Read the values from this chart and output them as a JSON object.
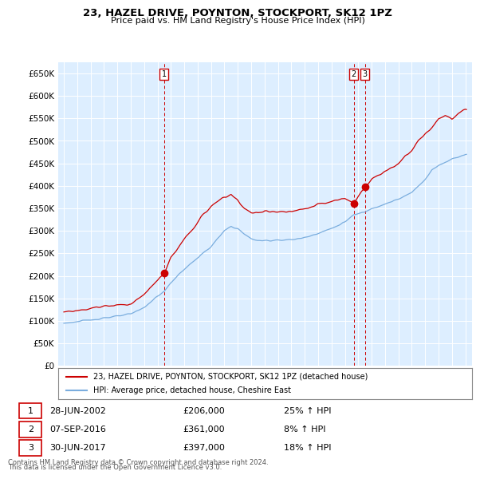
{
  "title": "23, HAZEL DRIVE, POYNTON, STOCKPORT, SK12 1PZ",
  "subtitle": "Price paid vs. HM Land Registry's House Price Index (HPI)",
  "ytick_values": [
    0,
    50000,
    100000,
    150000,
    200000,
    250000,
    300000,
    350000,
    400000,
    450000,
    500000,
    550000,
    600000,
    650000
  ],
  "ylim": [
    0,
    675000
  ],
  "xlim_start": 1994.58,
  "xlim_end": 2025.5,
  "line1_color": "#cc0000",
  "line2_color": "#7aadde",
  "sale_color": "#cc0000",
  "transaction_labels": [
    "1",
    "2",
    "3"
  ],
  "transaction_dates": [
    2002.5,
    2016.67,
    2017.5
  ],
  "transaction_prices": [
    206000,
    361000,
    397000
  ],
  "transaction_x_labels": [
    "28-JUN-2002",
    "07-SEP-2016",
    "30-JUN-2017"
  ],
  "transaction_price_labels": [
    "£206,000",
    "£361,000",
    "£397,000"
  ],
  "transaction_hpi_labels": [
    "25% ↑ HPI",
    "8% ↑ HPI",
    "18% ↑ HPI"
  ],
  "legend_label1": "23, HAZEL DRIVE, POYNTON, STOCKPORT, SK12 1PZ (detached house)",
  "legend_label2": "HPI: Average price, detached house, Cheshire East",
  "footer1": "Contains HM Land Registry data © Crown copyright and database right 2024.",
  "footer2": "This data is licensed under the Open Government Licence v3.0.",
  "background_color": "#ffffff",
  "plot_bg_color": "#ddeeff",
  "grid_color": "#ffffff",
  "dashed_line_color": "#cc0000"
}
